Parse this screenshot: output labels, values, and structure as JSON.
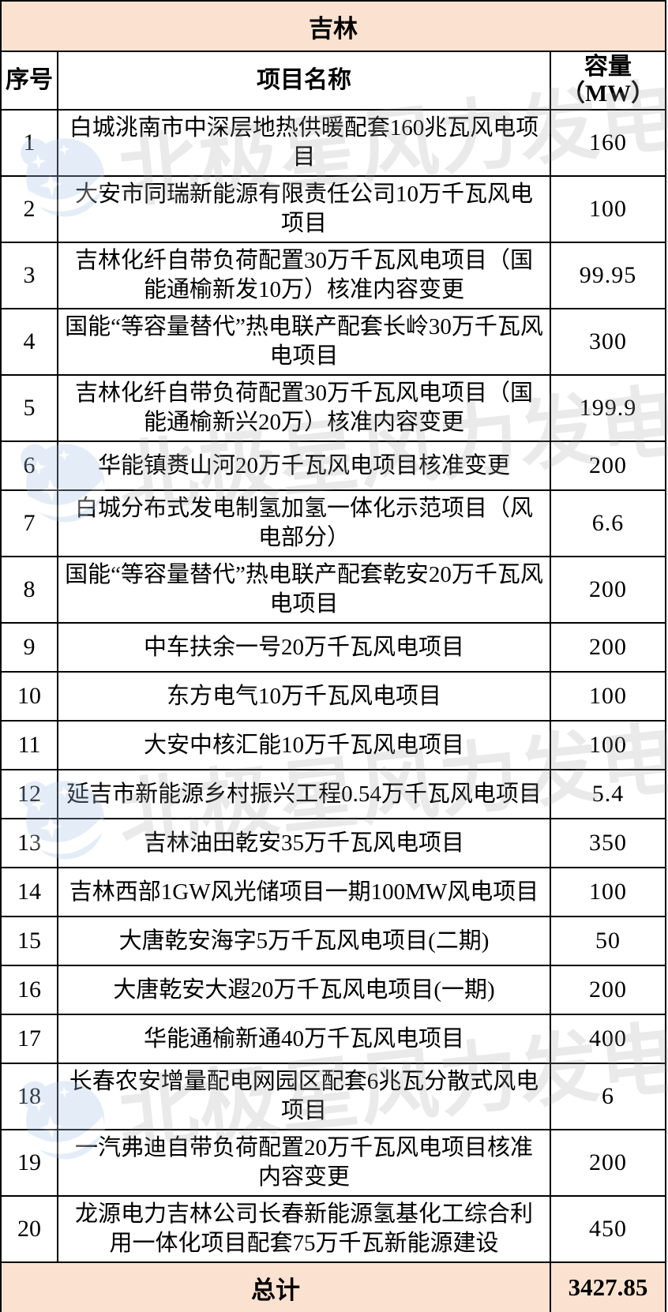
{
  "table": {
    "title": "吉林",
    "columns": {
      "index": "序号",
      "name": "项目名称",
      "capacity_label": "容量",
      "capacity_unit": "（MW）"
    },
    "rows": [
      {
        "no": "1",
        "name": "白城洮南市中深层地热供暖配套160兆瓦风电项目",
        "capacity": "160"
      },
      {
        "no": "2",
        "name": "大安市同瑞新能源有限责任公司10万千瓦风电项目",
        "capacity": "100"
      },
      {
        "no": "3",
        "name": "吉林化纤自带负荷配置30万千瓦风电项目（国能通榆新发10万）核准内容变更",
        "capacity": "99.95"
      },
      {
        "no": "4",
        "name": "国能“等容量替代”热电联产配套长岭30万千瓦风电项目",
        "capacity": "300"
      },
      {
        "no": "5",
        "name": "吉林化纤自带负荷配置30万千瓦风电项目（国能通榆新兴20万）核准内容变更",
        "capacity": "199.9"
      },
      {
        "no": "6",
        "name": "华能镇赉山河20万千瓦风电项目核准变更",
        "capacity": "200"
      },
      {
        "no": "7",
        "name": "白城分布式发电制氢加氢一体化示范项目（风电部分）",
        "capacity": "6.6"
      },
      {
        "no": "8",
        "name": "国能“等容量替代”热电联产配套乾安20万千瓦风电项目",
        "capacity": "200"
      },
      {
        "no": "9",
        "name": "中车扶余一号20万千瓦风电项目",
        "capacity": "200"
      },
      {
        "no": "10",
        "name": "东方电气10万千瓦风电项目",
        "capacity": "100"
      },
      {
        "no": "11",
        "name": "大安中核汇能10万千瓦风电项目",
        "capacity": "100"
      },
      {
        "no": "12",
        "name": "延吉市新能源乡村振兴工程0.54万千瓦风电项目",
        "capacity": "5.4"
      },
      {
        "no": "13",
        "name": "吉林油田乾安35万千瓦风电项目",
        "capacity": "350"
      },
      {
        "no": "14",
        "name": "吉林西部1GW风光储项目一期100MW风电项目",
        "capacity": "100"
      },
      {
        "no": "15",
        "name": "大唐乾安海字5万千瓦风电项目(二期)",
        "capacity": "50"
      },
      {
        "no": "16",
        "name": "大唐乾安大遐20万千瓦风电项目(一期)",
        "capacity": "200"
      },
      {
        "no": "17",
        "name": "华能通榆新通40万千瓦风电项目",
        "capacity": "400"
      },
      {
        "no": "18",
        "name": "长春农安增量配电网园区配套6兆瓦分散式风电项目",
        "capacity": "6"
      },
      {
        "no": "19",
        "name": "一汽弗迪自带负荷配置20万千瓦风电项目核准内容变更",
        "capacity": "200"
      },
      {
        "no": "20",
        "name": "龙源电力吉林公司长春新能源氢基化工综合利用一体化项目配套75万千瓦新能源建设",
        "capacity": "450"
      }
    ],
    "total_label": "总计",
    "total_value": "3427.85"
  },
  "watermark": {
    "text": "北极星风力发电网",
    "logo": "bjx-star-logo"
  },
  "colors": {
    "band_bg": "#fbe2d0",
    "border": "#000000",
    "watermark_text": "#9e9e9e",
    "watermark_logo_blue": "#a8c4e8"
  }
}
